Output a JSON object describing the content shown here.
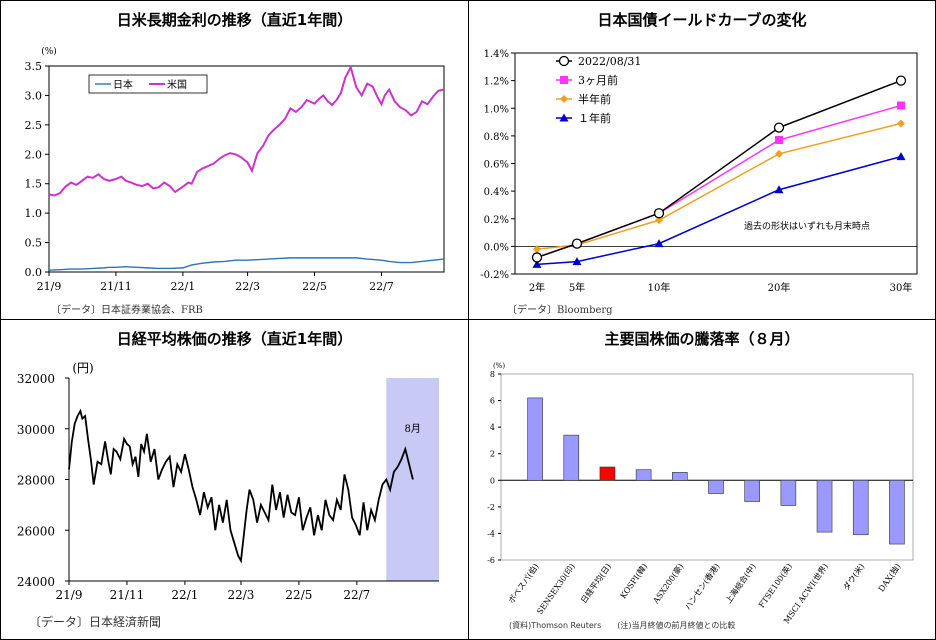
{
  "panels": {
    "p1": {
      "title": "日米長期金利の推移（直近1年間）",
      "source": "〔データ〕日本証券業協会、FRB"
    },
    "p2": {
      "title": "日本国債イールドカーブの変化",
      "source": "〔データ〕Bloomberg"
    },
    "p3": {
      "title": "日経平均株価の推移（直近1年間）",
      "source": "〔データ〕日本経済新聞"
    },
    "p4": {
      "title": "主要国株価の騰落率（８月）",
      "source": "(資料)Thomson Reuters　　(注)当月終値の前月終値との比較"
    }
  },
  "chart_data": [
    {
      "id": "rates",
      "type": "line",
      "title": "日米長期金利の推移（直近1年間）",
      "ylabel": "(%)",
      "ylim": [
        0,
        3.5
      ],
      "yticks": [
        "0.0",
        "0.5",
        "1.0",
        "1.5",
        "2.0",
        "2.5",
        "3.0",
        "3.5"
      ],
      "xlim": [
        0,
        360
      ],
      "xticks": [
        {
          "x": 0,
          "label": "21/9"
        },
        {
          "x": 61,
          "label": "21/11"
        },
        {
          "x": 122,
          "label": "22/1"
        },
        {
          "x": 181,
          "label": "22/3"
        },
        {
          "x": 242,
          "label": "22/5"
        },
        {
          "x": 303,
          "label": "22/7"
        }
      ],
      "legend": [
        "日本",
        "米国"
      ],
      "colors": {
        "japan": "#2e75b6",
        "us": "#cc33cc"
      },
      "series": [
        {
          "name": "日本",
          "x": [
            0,
            10,
            20,
            30,
            40,
            50,
            55,
            61,
            70,
            80,
            90,
            100,
            110,
            122,
            130,
            140,
            150,
            160,
            170,
            181,
            190,
            200,
            210,
            220,
            230,
            242,
            250,
            260,
            270,
            280,
            290,
            303,
            310,
            320,
            330,
            340,
            350,
            360
          ],
          "y": [
            0.03,
            0.04,
            0.05,
            0.05,
            0.06,
            0.07,
            0.08,
            0.08,
            0.09,
            0.08,
            0.07,
            0.06,
            0.06,
            0.07,
            0.12,
            0.15,
            0.17,
            0.18,
            0.2,
            0.2,
            0.21,
            0.22,
            0.23,
            0.24,
            0.24,
            0.24,
            0.24,
            0.24,
            0.24,
            0.24,
            0.22,
            0.2,
            0.18,
            0.16,
            0.16,
            0.18,
            0.2,
            0.22
          ]
        },
        {
          "name": "米国",
          "x": [
            0,
            5,
            10,
            15,
            20,
            25,
            30,
            35,
            40,
            45,
            50,
            55,
            61,
            66,
            70,
            75,
            80,
            85,
            90,
            95,
            100,
            105,
            110,
            115,
            122,
            127,
            130,
            135,
            140,
            145,
            150,
            155,
            160,
            165,
            170,
            175,
            181,
            185,
            190,
            195,
            200,
            205,
            210,
            215,
            220,
            225,
            230,
            235,
            242,
            246,
            250,
            254,
            258,
            262,
            266,
            270,
            275,
            280,
            285,
            290,
            295,
            300,
            303,
            306,
            310,
            315,
            320,
            325,
            330,
            335,
            340,
            345,
            350,
            355,
            360
          ],
          "y": [
            1.32,
            1.3,
            1.34,
            1.45,
            1.52,
            1.48,
            1.55,
            1.62,
            1.6,
            1.66,
            1.58,
            1.55,
            1.58,
            1.62,
            1.55,
            1.52,
            1.48,
            1.46,
            1.5,
            1.42,
            1.44,
            1.52,
            1.46,
            1.36,
            1.45,
            1.52,
            1.5,
            1.7,
            1.76,
            1.8,
            1.84,
            1.92,
            1.98,
            2.02,
            2.0,
            1.95,
            1.86,
            1.72,
            2.02,
            2.14,
            2.32,
            2.42,
            2.5,
            2.6,
            2.78,
            2.72,
            2.8,
            2.92,
            2.86,
            2.94,
            3.0,
            2.9,
            2.84,
            2.92,
            3.04,
            3.3,
            3.48,
            3.14,
            3.0,
            3.2,
            3.15,
            2.95,
            2.85,
            3.0,
            3.1,
            2.9,
            2.8,
            2.75,
            2.66,
            2.72,
            2.9,
            2.85,
            2.98,
            3.08,
            3.1
          ]
        }
      ]
    },
    {
      "id": "yield",
      "type": "line",
      "title": "日本国債イールドカーブの変化",
      "categories": [
        "2年",
        "5年",
        "10年",
        "20年",
        "30年"
      ],
      "ylim": [
        -0.2,
        1.4
      ],
      "yticks": [
        "-0.2%",
        "0.0%",
        "0.2%",
        "0.4%",
        "0.6%",
        "0.8%",
        "1.0%",
        "1.2%",
        "1.4%"
      ],
      "annotation": "過去の形状はいずれも月末時点",
      "series": [
        {
          "name": "2022/08/31",
          "marker": "circle",
          "color": "#000000",
          "values": [
            -0.08,
            0.02,
            0.24,
            0.86,
            1.2
          ]
        },
        {
          "name": "3ヶ月前",
          "marker": "square",
          "color": "#ff33ff",
          "values": [
            -0.08,
            0.02,
            0.24,
            0.77,
            1.02
          ]
        },
        {
          "name": "半年前",
          "marker": "diamond",
          "color": "#f0a020",
          "values": [
            -0.02,
            0.01,
            0.19,
            0.67,
            0.89
          ]
        },
        {
          "name": "１年前",
          "marker": "triangle",
          "color": "#0000cc",
          "values": [
            -0.13,
            -0.11,
            0.02,
            0.41,
            0.65
          ]
        }
      ]
    },
    {
      "id": "nikkei",
      "type": "line",
      "title": "日経平均株価の推移（直近1年間）",
      "ylabel": "(円)",
      "ylim": [
        24000,
        32000
      ],
      "yticks": [
        "24000",
        "26000",
        "28000",
        "30000",
        "32000"
      ],
      "xlim": [
        0,
        360
      ],
      "xticks": [
        {
          "x": 0,
          "label": "21/9"
        },
        {
          "x": 61,
          "label": "21/11"
        },
        {
          "x": 122,
          "label": "22/1"
        },
        {
          "x": 181,
          "label": "22/3"
        },
        {
          "x": 242,
          "label": "22/5"
        },
        {
          "x": 303,
          "label": "22/7"
        }
      ],
      "highlight": {
        "label": "8月",
        "from": 334,
        "to": 365,
        "color": "#c9c9f5"
      },
      "series": [
        {
          "name": "日経平均",
          "color": "#000000",
          "x": [
            0,
            3,
            6,
            9,
            12,
            14,
            17,
            20,
            23,
            26,
            30,
            34,
            38,
            41,
            44,
            47,
            50,
            54,
            58,
            61,
            64,
            67,
            70,
            73,
            76,
            79,
            82,
            86,
            90,
            94,
            98,
            102,
            106,
            110,
            114,
            118,
            122,
            126,
            130,
            134,
            138,
            142,
            146,
            150,
            154,
            158,
            162,
            166,
            170,
            174,
            178,
            181,
            184,
            187,
            190,
            194,
            198,
            202,
            206,
            210,
            214,
            218,
            222,
            226,
            230,
            234,
            238,
            242,
            246,
            250,
            254,
            258,
            262,
            266,
            270,
            274,
            278,
            282,
            286,
            290,
            294,
            298,
            302,
            306,
            310,
            314,
            318,
            322,
            326,
            330,
            334,
            338,
            342,
            346,
            350,
            354,
            358,
            362
          ],
          "y": [
            28400,
            29500,
            30200,
            30500,
            30700,
            30400,
            30500,
            29600,
            28800,
            27800,
            28700,
            28600,
            29500,
            28800,
            28200,
            29200,
            29100,
            28800,
            29600,
            29400,
            29300,
            28600,
            28900,
            28100,
            29400,
            29100,
            29800,
            28700,
            29200,
            28000,
            28400,
            28700,
            28900,
            27700,
            28600,
            28300,
            29000,
            28400,
            27700,
            27200,
            26600,
            27500,
            26900,
            27300,
            26000,
            27000,
            26300,
            27200,
            26000,
            25500,
            25000,
            24800,
            25800,
            26800,
            27600,
            27200,
            26300,
            27000,
            26700,
            26400,
            27800,
            26800,
            27500,
            26500,
            27400,
            26700,
            26600,
            27300,
            26000,
            26500,
            26900,
            25800,
            26600,
            26000,
            27200,
            26600,
            26400,
            27200,
            26800,
            28200,
            27600,
            26500,
            26200,
            25800,
            27100,
            26000,
            26800,
            26400,
            27200,
            27800,
            28000,
            27600,
            28300,
            28500,
            28800,
            29200,
            28600,
            28000
          ]
        }
      ]
    },
    {
      "id": "indices",
      "type": "bar",
      "title": "主要国株価の騰落率（８月）",
      "ylabel": "(%)",
      "ylim": [
        -6,
        8
      ],
      "yticks": [
        "-6",
        "-4",
        "-2",
        "0",
        "2",
        "4",
        "6",
        "8"
      ],
      "categories": [
        "ボベスパ(伯)",
        "SENSEX30(印)",
        "日経平均(日)",
        "KOSPI(韓)",
        "ASX200(豪)",
        "ハンセン(香港)",
        "上海総合(中)",
        "FTSE100(英)",
        "MSCI ACWI(世界)",
        "ダウ(米)",
        "DAX(独)"
      ],
      "values": [
        6.2,
        3.4,
        1.0,
        0.8,
        0.6,
        -1.0,
        -1.6,
        -1.9,
        -3.9,
        -4.1,
        -4.8
      ],
      "colors": {
        "default": "#9999ff",
        "highlight": "#ff0000"
      },
      "highlight_index": 2
    }
  ]
}
